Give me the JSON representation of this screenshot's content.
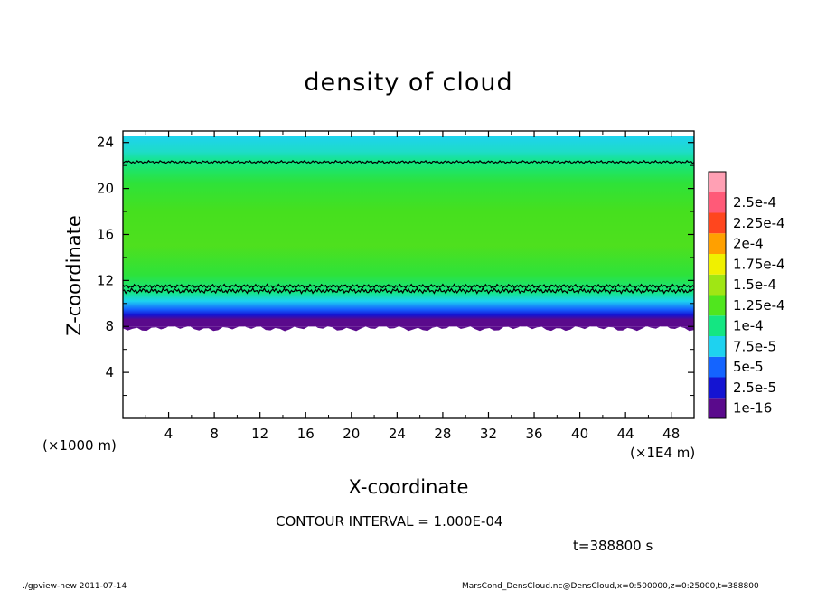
{
  "chart_data": {
    "type": "heatmap",
    "title": "density of cloud",
    "xlabel": "X-coordinate",
    "ylabel": "Z-coordinate",
    "x_unit_left": "(×1000 m)",
    "x_unit_right": "(×1E4 m)",
    "xlim": [
      0,
      50
    ],
    "ylim": [
      0,
      25
    ],
    "x_ticks": [
      "4",
      "8",
      "12",
      "16",
      "20",
      "24",
      "28",
      "32",
      "36",
      "40",
      "44",
      "48"
    ],
    "y_ticks": [
      "4",
      "8",
      "12",
      "16",
      "20",
      "24"
    ],
    "colorbar": {
      "labels": [
        "1e-16",
        "2.5e-5",
        "5e-5",
        "7.5e-5",
        "1e-4",
        "1.25e-4",
        "1.5e-4",
        "1.75e-4",
        "2e-4",
        "2.25e-4",
        "2.5e-4"
      ],
      "colors": [
        "#5a0a8c",
        "#1414d2",
        "#1464ff",
        "#1ed2f0",
        "#14e682",
        "#50e61e",
        "#a0e614",
        "#f0f000",
        "#ffa000",
        "#ff461e",
        "#ff5a78",
        "#ffa0b4"
      ]
    },
    "cloud_layer": {
      "z_bottom": 8,
      "z_top": 24.6,
      "contour_level_upper_z": 22.3,
      "contour_level_lower_z": 11.1
    },
    "contour_interval": "CONTOUR INTERVAL = 1.000E-04",
    "time": "t=388800 s"
  },
  "footer": {
    "left": "./gpview-new   2011-07-14",
    "right": "MarsCond_DensCloud.nc@DensCloud,x=0:500000,z=0:25000,t=388800"
  }
}
